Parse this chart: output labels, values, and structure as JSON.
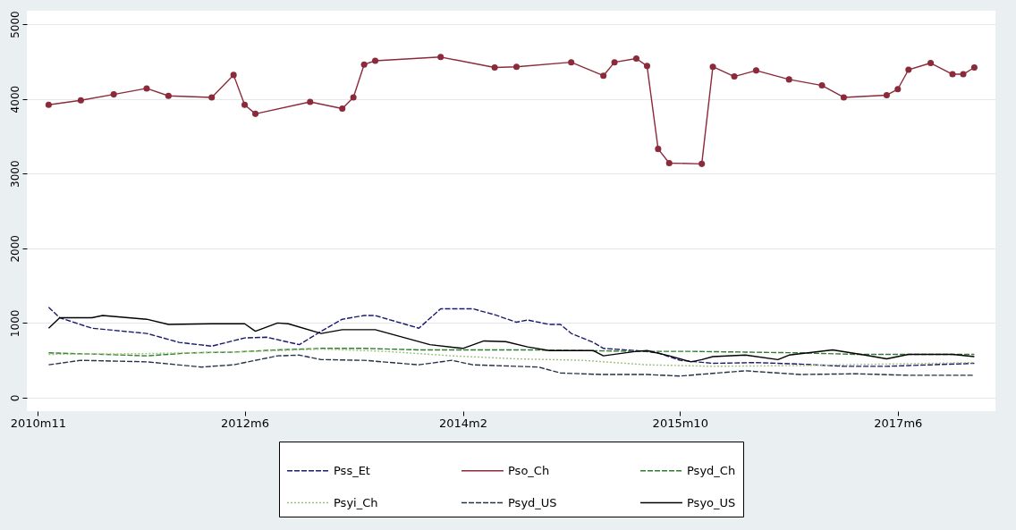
{
  "chart_data": {
    "type": "line",
    "xlim": [
      "2010-10",
      "2018-03"
    ],
    "xticks": [
      {
        "value": "2010-11",
        "label": "2010m11"
      },
      {
        "value": "2012-06",
        "label": "2012m6"
      },
      {
        "value": "2014-02",
        "label": "2014m2"
      },
      {
        "value": "2015-10",
        "label": "2015m10"
      },
      {
        "value": "2017-06",
        "label": "2017m6"
      }
    ],
    "ylim": [
      -180,
      5180
    ],
    "yticks": [
      0,
      1000,
      2000,
      3000,
      4000,
      5000
    ],
    "grid": "y",
    "legend": "bottom",
    "series": [
      {
        "name": "Pss_Et",
        "color": "#1a1a6e",
        "line_style": "dashed",
        "x": [
          "2010-12",
          "2011-01",
          "2011-04",
          "2011-09",
          "2011-12",
          "2012-03",
          "2012-06",
          "2012-08",
          "2012-11",
          "2013-01",
          "2013-03",
          "2013-05",
          "2013-06",
          "2013-10",
          "2013-12",
          "2014-03",
          "2014-05",
          "2014-07",
          "2014-08",
          "2014-10",
          "2014-11",
          "2014-12",
          "2015-02",
          "2015-03",
          "2015-06",
          "2015-08",
          "2015-10",
          "2016-01",
          "2016-05",
          "2016-09",
          "2017-01",
          "2017-05",
          "2017-09",
          "2018-01"
        ],
        "values": [
          1210,
          1070,
          930,
          860,
          740,
          690,
          800,
          810,
          710,
          890,
          1050,
          1100,
          1100,
          930,
          1190,
          1190,
          1110,
          1010,
          1040,
          980,
          980,
          860,
          740,
          660,
          630,
          600,
          500,
          460,
          470,
          450,
          420,
          420,
          440,
          460
        ]
      },
      {
        "name": "Pso_Ch",
        "color": "#8b2a3a",
        "line_style": "solid",
        "marker": "circle",
        "x": [
          "2010-12",
          "2011-03",
          "2011-06",
          "2011-09",
          "2011-11",
          "2012-03",
          "2012-05",
          "2012-06",
          "2012-07",
          "2012-12",
          "2013-03",
          "2013-04",
          "2013-05",
          "2013-06",
          "2013-12",
          "2014-05",
          "2014-07",
          "2014-12",
          "2015-03",
          "2015-04",
          "2015-06",
          "2015-07",
          "2015-08",
          "2015-09",
          "2015-12",
          "2016-01",
          "2016-03",
          "2016-05",
          "2016-08",
          "2016-11",
          "2017-01",
          "2017-05",
          "2017-06",
          "2017-07",
          "2017-09",
          "2017-11",
          "2017-12",
          "2018-01"
        ],
        "values": [
          3920,
          3980,
          4060,
          4140,
          4040,
          4020,
          4320,
          3920,
          3800,
          3960,
          3870,
          4020,
          4460,
          4510,
          4560,
          4420,
          4430,
          4490,
          4310,
          4490,
          4540,
          4440,
          3330,
          3140,
          3130,
          4430,
          4300,
          4380,
          4260,
          4180,
          4020,
          4050,
          4130,
          4390,
          4480,
          4330,
          4330,
          4420
        ]
      },
      {
        "name": "Psyd_Ch",
        "color": "#2e7d2e",
        "line_style": "dashed",
        "x": [
          "2010-12",
          "2011-05",
          "2011-09",
          "2012-01",
          "2012-05",
          "2012-09",
          "2013-01",
          "2013-05",
          "2013-10",
          "2014-03",
          "2014-08",
          "2015-01",
          "2015-06",
          "2015-11",
          "2016-04",
          "2016-09",
          "2017-02",
          "2017-07",
          "2018-01"
        ],
        "values": [
          600,
          580,
          560,
          600,
          610,
          640,
          660,
          660,
          640,
          640,
          640,
          630,
          620,
          620,
          610,
          600,
          580,
          580,
          580
        ]
      },
      {
        "name": "Psyi_Ch",
        "color": "#9cbf7a",
        "line_style": "dotted",
        "x": [
          "2010-12",
          "2011-09",
          "2012-07",
          "2013-01",
          "2013-07",
          "2014-01",
          "2014-07",
          "2015-01",
          "2015-07",
          "2016-01",
          "2016-09",
          "2017-05",
          "2018-01"
        ],
        "values": [
          580,
          590,
          620,
          650,
          620,
          560,
          520,
          500,
          440,
          420,
          430,
          450,
          470
        ]
      },
      {
        "name": "Psyd_US",
        "color": "#24324a",
        "line_style": "dashed",
        "x": [
          "2010-12",
          "2011-03",
          "2011-09",
          "2012-02",
          "2012-05",
          "2012-09",
          "2012-11",
          "2013-01",
          "2013-05",
          "2013-10",
          "2014-01",
          "2014-03",
          "2014-09",
          "2014-11",
          "2015-03",
          "2015-07",
          "2015-10",
          "2016-04",
          "2016-09",
          "2017-02",
          "2017-07",
          "2018-01"
        ],
        "values": [
          440,
          500,
          480,
          410,
          440,
          560,
          570,
          510,
          500,
          440,
          500,
          440,
          410,
          330,
          310,
          310,
          290,
          360,
          310,
          320,
          300,
          300
        ]
      },
      {
        "name": "Psyo_US",
        "color": "#000000",
        "line_style": "solid",
        "x": [
          "2010-12",
          "2011-01",
          "2011-04",
          "2011-05",
          "2011-09",
          "2011-11",
          "2012-03",
          "2012-06",
          "2012-07",
          "2012-09",
          "2012-10",
          "2013-01",
          "2013-03",
          "2013-06",
          "2013-11",
          "2014-02",
          "2014-04",
          "2014-06",
          "2014-08",
          "2014-10",
          "2015-02",
          "2015-03",
          "2015-06",
          "2015-07",
          "2015-09",
          "2015-11",
          "2015-12",
          "2016-01",
          "2016-04",
          "2016-07",
          "2016-08",
          "2016-12",
          "2017-03",
          "2017-05",
          "2017-07",
          "2017-11",
          "2018-01"
        ],
        "values": [
          930,
          1070,
          1070,
          1100,
          1050,
          980,
          990,
          990,
          890,
          1000,
          990,
          860,
          910,
          910,
          710,
          660,
          760,
          750,
          680,
          630,
          630,
          560,
          620,
          630,
          560,
          480,
          510,
          550,
          570,
          510,
          570,
          640,
          570,
          520,
          580,
          580,
          550
        ]
      }
    ]
  }
}
